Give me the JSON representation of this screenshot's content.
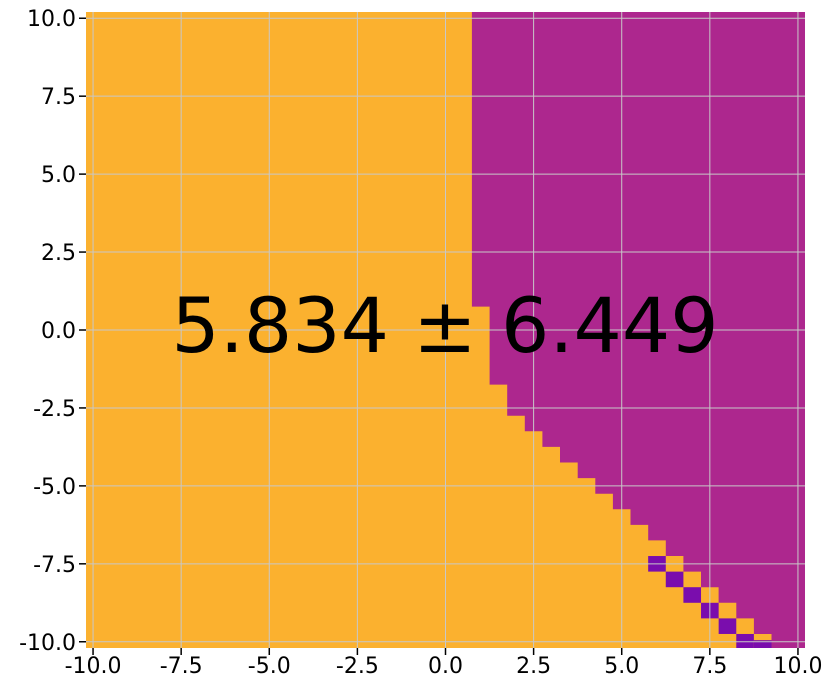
{
  "chart_data": {
    "type": "heatmap",
    "title": "",
    "xlabel": "",
    "ylabel": "",
    "xlim": [
      -10.2,
      10.2
    ],
    "ylim": [
      -10.2,
      10.2
    ],
    "grid": true,
    "x_ticks": [
      "-10.0",
      "-7.5",
      "-5.0",
      "-2.5",
      "0.0",
      "2.5",
      "5.0",
      "7.5",
      "10.0"
    ],
    "y_ticks": [
      "10.0",
      "7.5",
      "5.0",
      "2.5",
      "0.0",
      "-2.5",
      "-5.0",
      "-7.5",
      "-10.0"
    ],
    "annotation": "5.834 ± 6.449",
    "colors": {
      "left_region": "#fbb12f",
      "right_region": "#ad278e",
      "dark_cell": "#7a0dad",
      "grid": "#c8c8c8"
    },
    "regions": [
      {
        "name": "orange-region",
        "color_key": "left_region"
      },
      {
        "name": "magenta-region",
        "color_key": "right_region"
      }
    ],
    "boundary": [
      {
        "x": 0.75,
        "y": 10.2
      },
      {
        "x": 0.75,
        "y": 0.75
      },
      {
        "x": 1.25,
        "y": 0.75
      },
      {
        "x": 1.25,
        "y": -1.75
      },
      {
        "x": 1.75,
        "y": -1.75
      },
      {
        "x": 1.75,
        "y": -2.75
      },
      {
        "x": 2.25,
        "y": -2.75
      },
      {
        "x": 2.25,
        "y": -3.25
      },
      {
        "x": 2.75,
        "y": -3.25
      },
      {
        "x": 2.75,
        "y": -3.75
      },
      {
        "x": 3.25,
        "y": -3.75
      },
      {
        "x": 3.25,
        "y": -4.25
      },
      {
        "x": 3.75,
        "y": -4.25
      },
      {
        "x": 3.75,
        "y": -4.75
      },
      {
        "x": 4.25,
        "y": -4.75
      },
      {
        "x": 4.25,
        "y": -5.25
      },
      {
        "x": 4.75,
        "y": -5.25
      },
      {
        "x": 4.75,
        "y": -5.75
      },
      {
        "x": 5.25,
        "y": -5.75
      },
      {
        "x": 5.25,
        "y": -6.25
      },
      {
        "x": 5.75,
        "y": -6.25
      },
      {
        "x": 5.75,
        "y": -6.75
      },
      {
        "x": 6.25,
        "y": -6.75
      },
      {
        "x": 6.25,
        "y": -7.25
      },
      {
        "x": 6.75,
        "y": -7.25
      },
      {
        "x": 6.75,
        "y": -7.75
      },
      {
        "x": 7.25,
        "y": -7.75
      },
      {
        "x": 7.25,
        "y": -8.25
      },
      {
        "x": 7.75,
        "y": -8.25
      },
      {
        "x": 7.75,
        "y": -8.75
      },
      {
        "x": 8.25,
        "y": -8.75
      },
      {
        "x": 8.25,
        "y": -9.25
      },
      {
        "x": 8.75,
        "y": -9.25
      },
      {
        "x": 8.75,
        "y": -9.75
      },
      {
        "x": 9.25,
        "y": -9.75
      },
      {
        "x": 9.25,
        "y": -10.2
      }
    ],
    "dark_cells": [
      {
        "x": 6.0,
        "y": -7.5
      },
      {
        "x": 6.5,
        "y": -8.0
      },
      {
        "x": 7.0,
        "y": -8.5
      },
      {
        "x": 7.5,
        "y": -9.0
      },
      {
        "x": 8.0,
        "y": -9.5
      },
      {
        "x": 8.5,
        "y": -10.0
      },
      {
        "x": 9.0,
        "y": -10.2
      }
    ]
  }
}
